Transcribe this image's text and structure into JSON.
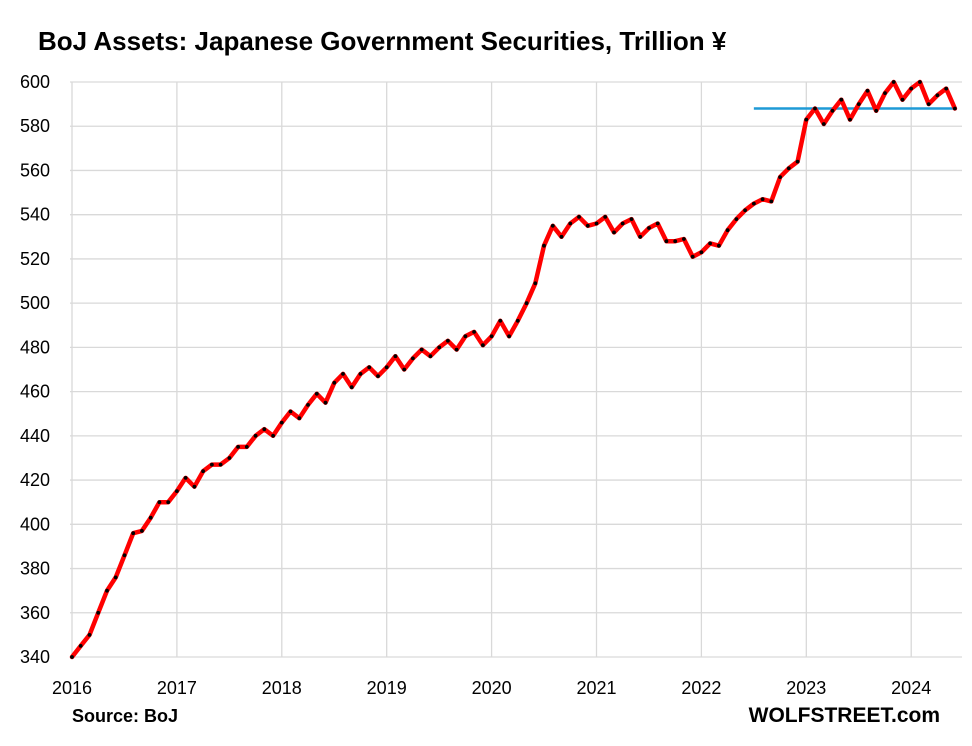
{
  "chart_data": {
    "type": "line",
    "title": "BoJ Assets: Japanese Government Securities, Trillion ¥",
    "xlabel": "",
    "ylabel": "",
    "ylim": [
      340,
      600
    ],
    "xlim": [
      "2016-01",
      "2024-06"
    ],
    "x_ticks": [
      "2016",
      "2017",
      "2018",
      "2019",
      "2020",
      "2021",
      "2022",
      "2023",
      "2024"
    ],
    "y_ticks": [
      340,
      360,
      380,
      400,
      420,
      440,
      460,
      480,
      500,
      520,
      540,
      560,
      580,
      600
    ],
    "grid": "vertical and horizontal",
    "legend": "none",
    "series": [
      {
        "color": "#ff0000",
        "marker_color": "#000000",
        "x": [
          "2016-01",
          "2016-02",
          "2016-03",
          "2016-04",
          "2016-05",
          "2016-06",
          "2016-07",
          "2016-08",
          "2016-09",
          "2016-10",
          "2016-11",
          "2016-12",
          "2017-01",
          "2017-02",
          "2017-03",
          "2017-04",
          "2017-05",
          "2017-06",
          "2017-07",
          "2017-08",
          "2017-09",
          "2017-10",
          "2017-11",
          "2017-12",
          "2018-01",
          "2018-02",
          "2018-03",
          "2018-04",
          "2018-05",
          "2018-06",
          "2018-07",
          "2018-08",
          "2018-09",
          "2018-10",
          "2018-11",
          "2018-12",
          "2019-01",
          "2019-02",
          "2019-03",
          "2019-04",
          "2019-05",
          "2019-06",
          "2019-07",
          "2019-08",
          "2019-09",
          "2019-10",
          "2019-11",
          "2019-12",
          "2020-01",
          "2020-02",
          "2020-03",
          "2020-04",
          "2020-05",
          "2020-06",
          "2020-07",
          "2020-08",
          "2020-09",
          "2020-10",
          "2020-11",
          "2020-12",
          "2021-01",
          "2021-02",
          "2021-03",
          "2021-04",
          "2021-05",
          "2021-06",
          "2021-07",
          "2021-08",
          "2021-09",
          "2021-10",
          "2021-11",
          "2021-12",
          "2022-01",
          "2022-02",
          "2022-03",
          "2022-04",
          "2022-05",
          "2022-06",
          "2022-07",
          "2022-08",
          "2022-09",
          "2022-10",
          "2022-11",
          "2022-12",
          "2023-01",
          "2023-02",
          "2023-03",
          "2023-04",
          "2023-05",
          "2023-06",
          "2023-07",
          "2023-08",
          "2023-09",
          "2023-10",
          "2023-11",
          "2023-12",
          "2024-01",
          "2024-02",
          "2024-03",
          "2024-04",
          "2024-05",
          "2024-06"
        ],
        "values": [
          340,
          345,
          350,
          360,
          370,
          376,
          386,
          396,
          397,
          403,
          410,
          410,
          415,
          421,
          417,
          424,
          427,
          427,
          430,
          435,
          435,
          440,
          443,
          440,
          446,
          451,
          448,
          454,
          459,
          455,
          464,
          468,
          462,
          468,
          471,
          467,
          471,
          476,
          470,
          475,
          479,
          476,
          480,
          483,
          479,
          485,
          487,
          481,
          485,
          492,
          485,
          492,
          500,
          509,
          526,
          535,
          530,
          536,
          539,
          535,
          536,
          539,
          532,
          536,
          538,
          530,
          534,
          536,
          528,
          528,
          529,
          521,
          523,
          527,
          526,
          533,
          538,
          542,
          545,
          547,
          546,
          557,
          561,
          564,
          583,
          588,
          581,
          587,
          592,
          583,
          590,
          596,
          587,
          595,
          600,
          592,
          597,
          600,
          590,
          594,
          597,
          588
        ]
      }
    ],
    "reference_line": {
      "value": 588,
      "x_start": "2022-07",
      "x_end": "2024-06",
      "color": "#1e9ad6"
    }
  },
  "footer": {
    "source": "Source: BoJ",
    "brand": "WOLFSTREET.com"
  }
}
